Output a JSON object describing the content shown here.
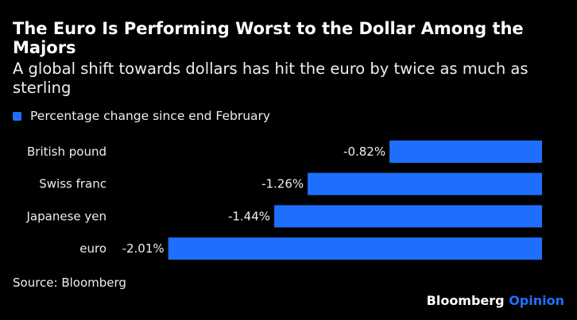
{
  "title": "The Euro Is Performing Worst to the Dollar Among the Majors",
  "subtitle": "A global shift towards dollars has hit the euro by twice as much as sterling",
  "source": "Source: Bloomberg",
  "logo": {
    "brand": "Bloomberg",
    "product": "Opinion"
  },
  "colors": {
    "bar": "#1f6fff",
    "background": "#000000",
    "logo_accent": "#1f6fff"
  },
  "chart_data": {
    "type": "bar",
    "orientation": "horizontal",
    "categories": [
      "British pound",
      "Swiss franc",
      "Japanese yen",
      "euro"
    ],
    "series": [
      {
        "name": "Percentage change since end February",
        "values": [
          -0.82,
          -1.26,
          -1.44,
          -2.01
        ]
      }
    ],
    "data_labels": [
      "-0.82%",
      "-1.26%",
      "-1.44%",
      "-2.01%"
    ],
    "legend": "top-left",
    "grid": false
  }
}
